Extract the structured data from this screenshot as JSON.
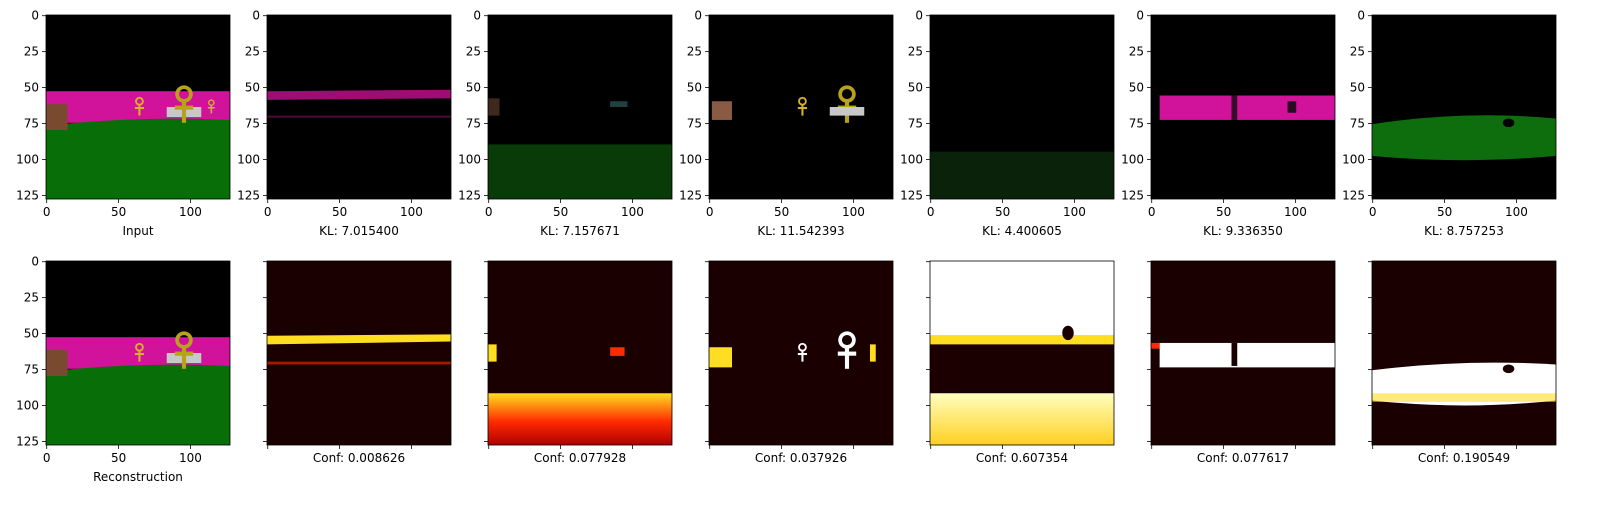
{
  "figure": {
    "rows": [
      {
        "row": "top",
        "panels": [
          {
            "kind": "input",
            "caption": "Input",
            "ticks": true
          },
          {
            "kind": "component",
            "caption": "KL: 7.015400",
            "ticks": true,
            "content": "magenta-band"
          },
          {
            "kind": "component",
            "caption": "KL: 7.157671",
            "ticks": true,
            "content": "green-ground"
          },
          {
            "kind": "component",
            "caption": "KL: 11.542393",
            "ticks": true,
            "content": "objects"
          },
          {
            "kind": "component",
            "caption": "KL: 4.400605",
            "ticks": true,
            "content": "faint-green"
          },
          {
            "kind": "component",
            "caption": "KL: 9.336350",
            "ticks": true,
            "content": "magenta-block"
          },
          {
            "kind": "component",
            "caption": "KL: 8.757253",
            "ticks": true,
            "content": "green-blob"
          }
        ]
      },
      {
        "row": "bottom",
        "panels": [
          {
            "kind": "reconstruction",
            "caption": "Reconstruction",
            "ticks": true
          },
          {
            "kind": "mask",
            "caption": "Conf: 0.008626",
            "ticks": false,
            "content": "thin-band"
          },
          {
            "kind": "mask",
            "caption": "Conf: 0.077928",
            "ticks": false,
            "content": "red-ground"
          },
          {
            "kind": "mask",
            "caption": "Conf: 0.037926",
            "ticks": false,
            "content": "objects"
          },
          {
            "kind": "mask",
            "caption": "Conf: 0.607354",
            "ticks": false,
            "content": "mostly-bright"
          },
          {
            "kind": "mask",
            "caption": "Conf: 0.077617",
            "ticks": false,
            "content": "bright-band"
          },
          {
            "kind": "mask",
            "caption": "Conf: 0.190549",
            "ticks": false,
            "content": "bright-blob"
          }
        ]
      }
    ],
    "x_ticks": [
      "0",
      "50",
      "100"
    ],
    "y_ticks": [
      "0",
      "25",
      "50",
      "75",
      "100",
      "125"
    ],
    "colors": {
      "magenta": "#d1129a",
      "green": "#086f08",
      "black": "#000000",
      "heat_dark": "#1a0000",
      "heat_red": "#ff2a00",
      "heat_yellow": "#ffdd20",
      "heat_white": "#ffffff"
    }
  }
}
